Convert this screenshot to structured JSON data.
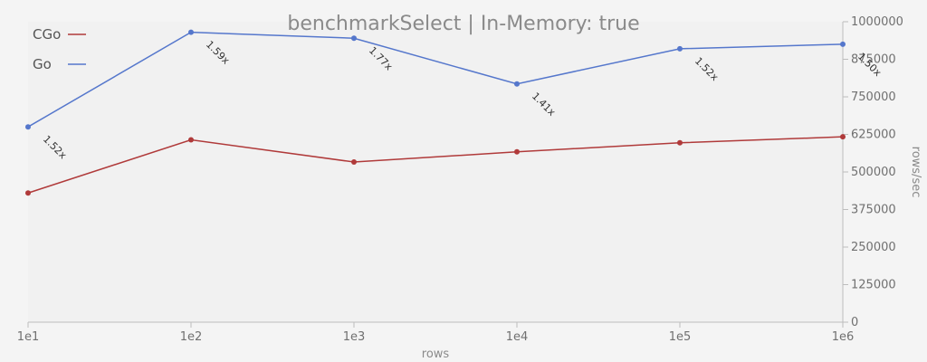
{
  "chart_data": {
    "type": "line",
    "title": "benchmarkSelect | In-Memory: true",
    "xlabel": "rows",
    "ylabel": "rows/sec",
    "x": [
      "1e1",
      "1e2",
      "1e3",
      "1e4",
      "1e5",
      "1e6"
    ],
    "ylim": [
      0,
      1000000
    ],
    "yticks": [
      "0",
      "125000",
      "250000",
      "375000",
      "500000",
      "625000",
      "750000",
      "875000",
      "1000000"
    ],
    "y_axis_side": "right",
    "legend_position": "top-left",
    "grid": false,
    "series": [
      {
        "name": "CGo",
        "color": "#b03a3a",
        "values": [
          430000,
          607000,
          533000,
          567000,
          597000,
          617000
        ]
      },
      {
        "name": "Go",
        "color": "#5577cc",
        "values": [
          650000,
          965000,
          945000,
          793000,
          910000,
          925000
        ]
      }
    ],
    "annotations": [
      "1.52x",
      "1.59x",
      "1.77x",
      "1.41x",
      "1.52x",
      "1.50x"
    ]
  }
}
